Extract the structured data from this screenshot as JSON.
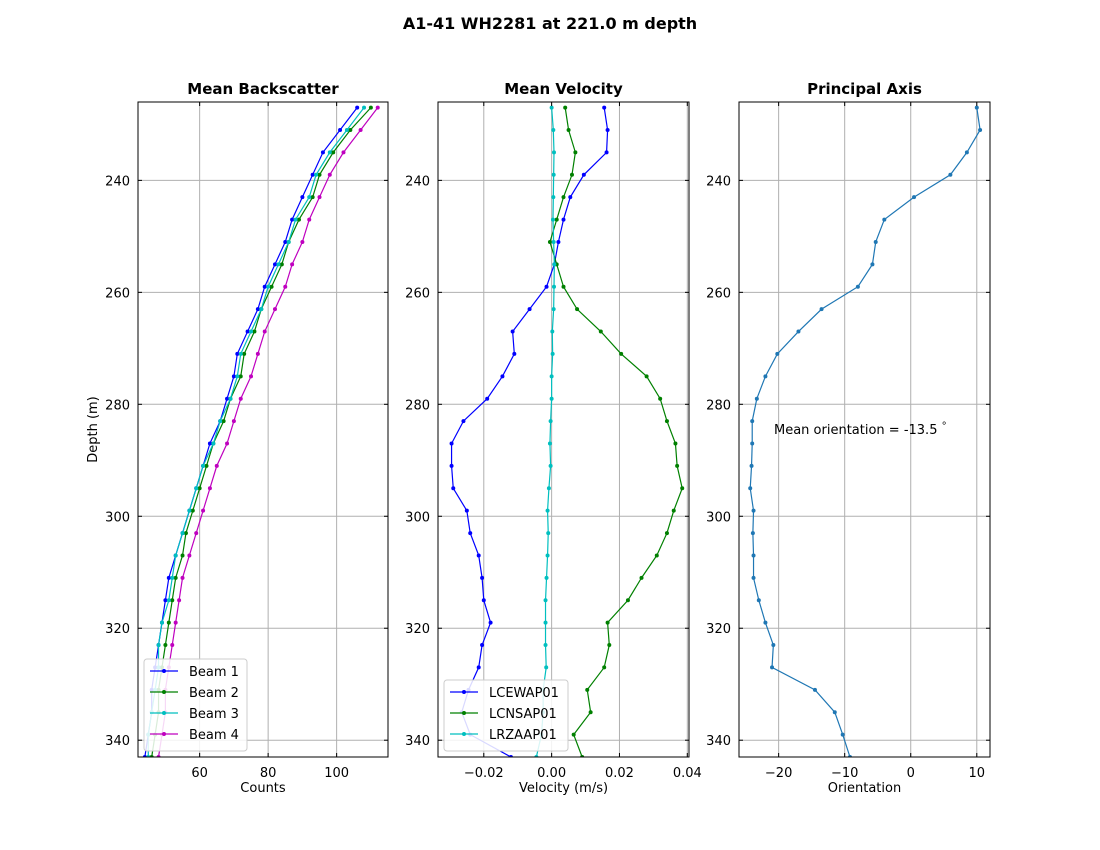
{
  "figure": {
    "title": "A1-41 WH2281 at 221.0 m depth"
  },
  "chart_data": [
    {
      "type": "line",
      "title": "Mean Backscatter",
      "xlabel": "Counts",
      "ylabel": "Depth (m)",
      "xlim": [
        42,
        115
      ],
      "ylim": [
        343,
        226
      ],
      "y_inverted": true,
      "xticks": [
        60,
        80,
        100
      ],
      "yticks": [
        240,
        260,
        280,
        300,
        320,
        340
      ],
      "grid": true,
      "legend": "lower left",
      "y": [
        227,
        231,
        235,
        239,
        243,
        247,
        251,
        255,
        259,
        263,
        267,
        271,
        275,
        279,
        283,
        287,
        291,
        295,
        299,
        303,
        307,
        311,
        315,
        319,
        323,
        327,
        331,
        335,
        339,
        343
      ],
      "series": [
        {
          "name": "Beam 1",
          "color": "#0000ff",
          "values": [
            106,
            101,
            96,
            93,
            90,
            87,
            85,
            82,
            79,
            77,
            74,
            71,
            70,
            68,
            66,
            63,
            61,
            59,
            57,
            55,
            53,
            51,
            50,
            49,
            48,
            47,
            46,
            46,
            45,
            44
          ]
        },
        {
          "name": "Beam 2",
          "color": "#008000",
          "values": [
            110,
            104,
            99,
            95,
            93,
            89,
            86,
            84,
            81,
            78,
            76,
            73,
            72,
            69,
            67,
            64,
            62,
            60,
            58,
            56,
            55,
            53,
            52,
            51,
            50,
            49,
            48,
            48,
            47,
            46
          ]
        },
        {
          "name": "Beam 3",
          "color": "#00bfbf",
          "values": [
            108,
            103,
            98,
            94,
            92,
            88,
            86,
            83,
            80,
            78,
            75,
            72,
            71,
            69,
            66,
            64,
            61,
            59,
            57,
            55,
            53,
            52,
            51,
            49,
            48,
            48,
            47,
            46,
            45,
            45
          ]
        },
        {
          "name": "Beam 4",
          "color": "#bf00bf",
          "values": [
            112,
            107,
            102,
            98,
            95,
            92,
            90,
            87,
            85,
            82,
            79,
            77,
            75,
            72,
            70,
            68,
            65,
            63,
            61,
            59,
            57,
            55,
            54,
            53,
            52,
            51,
            50,
            50,
            49,
            48
          ]
        }
      ]
    },
    {
      "type": "line",
      "title": "Mean Velocity",
      "xlabel": "Velocity (m/s)",
      "xlim": [
        -0.0335,
        0.0405
      ],
      "ylim": [
        343,
        226
      ],
      "y_inverted": true,
      "xticks": [
        -0.02,
        0.0,
        0.02,
        0.04
      ],
      "xtick_labels": [
        "−0.02",
        "0.00",
        "0.02",
        "0.04"
      ],
      "yticks": [
        240,
        260,
        280,
        300,
        320,
        340
      ],
      "grid": true,
      "legend": "lower left",
      "y": [
        227,
        231,
        235,
        239,
        243,
        247,
        251,
        255,
        259,
        263,
        267,
        271,
        275,
        279,
        283,
        287,
        291,
        295,
        299,
        303,
        307,
        311,
        315,
        319,
        323,
        327,
        331,
        335,
        339,
        343
      ],
      "series": [
        {
          "name": "LCEWAP01",
          "color": "#0000ff",
          "values": [
            0.0155,
            0.0165,
            0.0162,
            0.0095,
            0.0055,
            0.0035,
            0.002,
            0.0008,
            -0.0015,
            -0.0065,
            -0.0115,
            -0.011,
            -0.0145,
            -0.019,
            -0.026,
            -0.0295,
            -0.0295,
            -0.029,
            -0.025,
            -0.024,
            -0.0215,
            -0.0205,
            -0.02,
            -0.018,
            -0.0205,
            -0.0215,
            -0.0245,
            -0.0265,
            -0.024,
            -0.012
          ]
        },
        {
          "name": "LCNSAP01",
          "color": "#008000",
          "values": [
            0.004,
            0.005,
            0.007,
            0.006,
            0.0035,
            0.0015,
            -0.0005,
            0.0015,
            0.0035,
            0.0075,
            0.0145,
            0.0205,
            0.028,
            0.032,
            0.034,
            0.0365,
            0.037,
            0.0385,
            0.036,
            0.034,
            0.031,
            0.0265,
            0.0225,
            0.0165,
            0.017,
            0.0155,
            0.0105,
            0.0115,
            0.0065,
            0.009
          ]
        },
        {
          "name": "LRZAAP01",
          "color": "#00bfbf",
          "values": [
            0.0,
            0.0005,
            0.0007,
            0.0006,
            0.0005,
            0.0004,
            0.0006,
            0.0008,
            0.0007,
            0.0006,
            0.0002,
            0.0003,
            0.0,
            0.0,
            -0.0003,
            -0.0005,
            -0.0003,
            -0.0008,
            -0.0012,
            -0.001,
            -0.0012,
            -0.0015,
            -0.0018,
            -0.0018,
            -0.0018,
            -0.0016,
            -0.0025,
            -0.0025,
            -0.003,
            -0.0045
          ]
        }
      ]
    },
    {
      "type": "line",
      "title": "Principal Axis",
      "xlabel": "Orientation",
      "xlim": [
        -26,
        12
      ],
      "ylim": [
        343,
        226
      ],
      "y_inverted": true,
      "xticks": [
        -20,
        -10,
        0,
        10
      ],
      "xtick_labels": [
        "−20",
        "−10",
        "0",
        "10"
      ],
      "yticks": [
        240,
        260,
        280,
        300,
        320,
        340
      ],
      "grid": true,
      "annotation": "Mean orientation = -13.5",
      "annotation_unit": "°",
      "y": [
        227,
        231,
        235,
        239,
        243,
        247,
        251,
        255,
        259,
        263,
        267,
        271,
        275,
        279,
        283,
        287,
        291,
        295,
        299,
        303,
        307,
        311,
        315,
        319,
        323,
        327,
        331,
        335,
        339,
        343
      ],
      "series": [
        {
          "name": "",
          "color": "#1f77b4",
          "values": [
            10,
            10.5,
            8.5,
            6,
            0.5,
            -4,
            -5.3,
            -5.8,
            -8,
            -13.5,
            -17,
            -20.2,
            -22,
            -23.3,
            -24,
            -24,
            -24.1,
            -24.3,
            -23.8,
            -23.9,
            -23.8,
            -23.8,
            -23,
            -22,
            -20.8,
            -21,
            -14.5,
            -11.5,
            -10.3,
            -9.2
          ]
        }
      ]
    }
  ]
}
